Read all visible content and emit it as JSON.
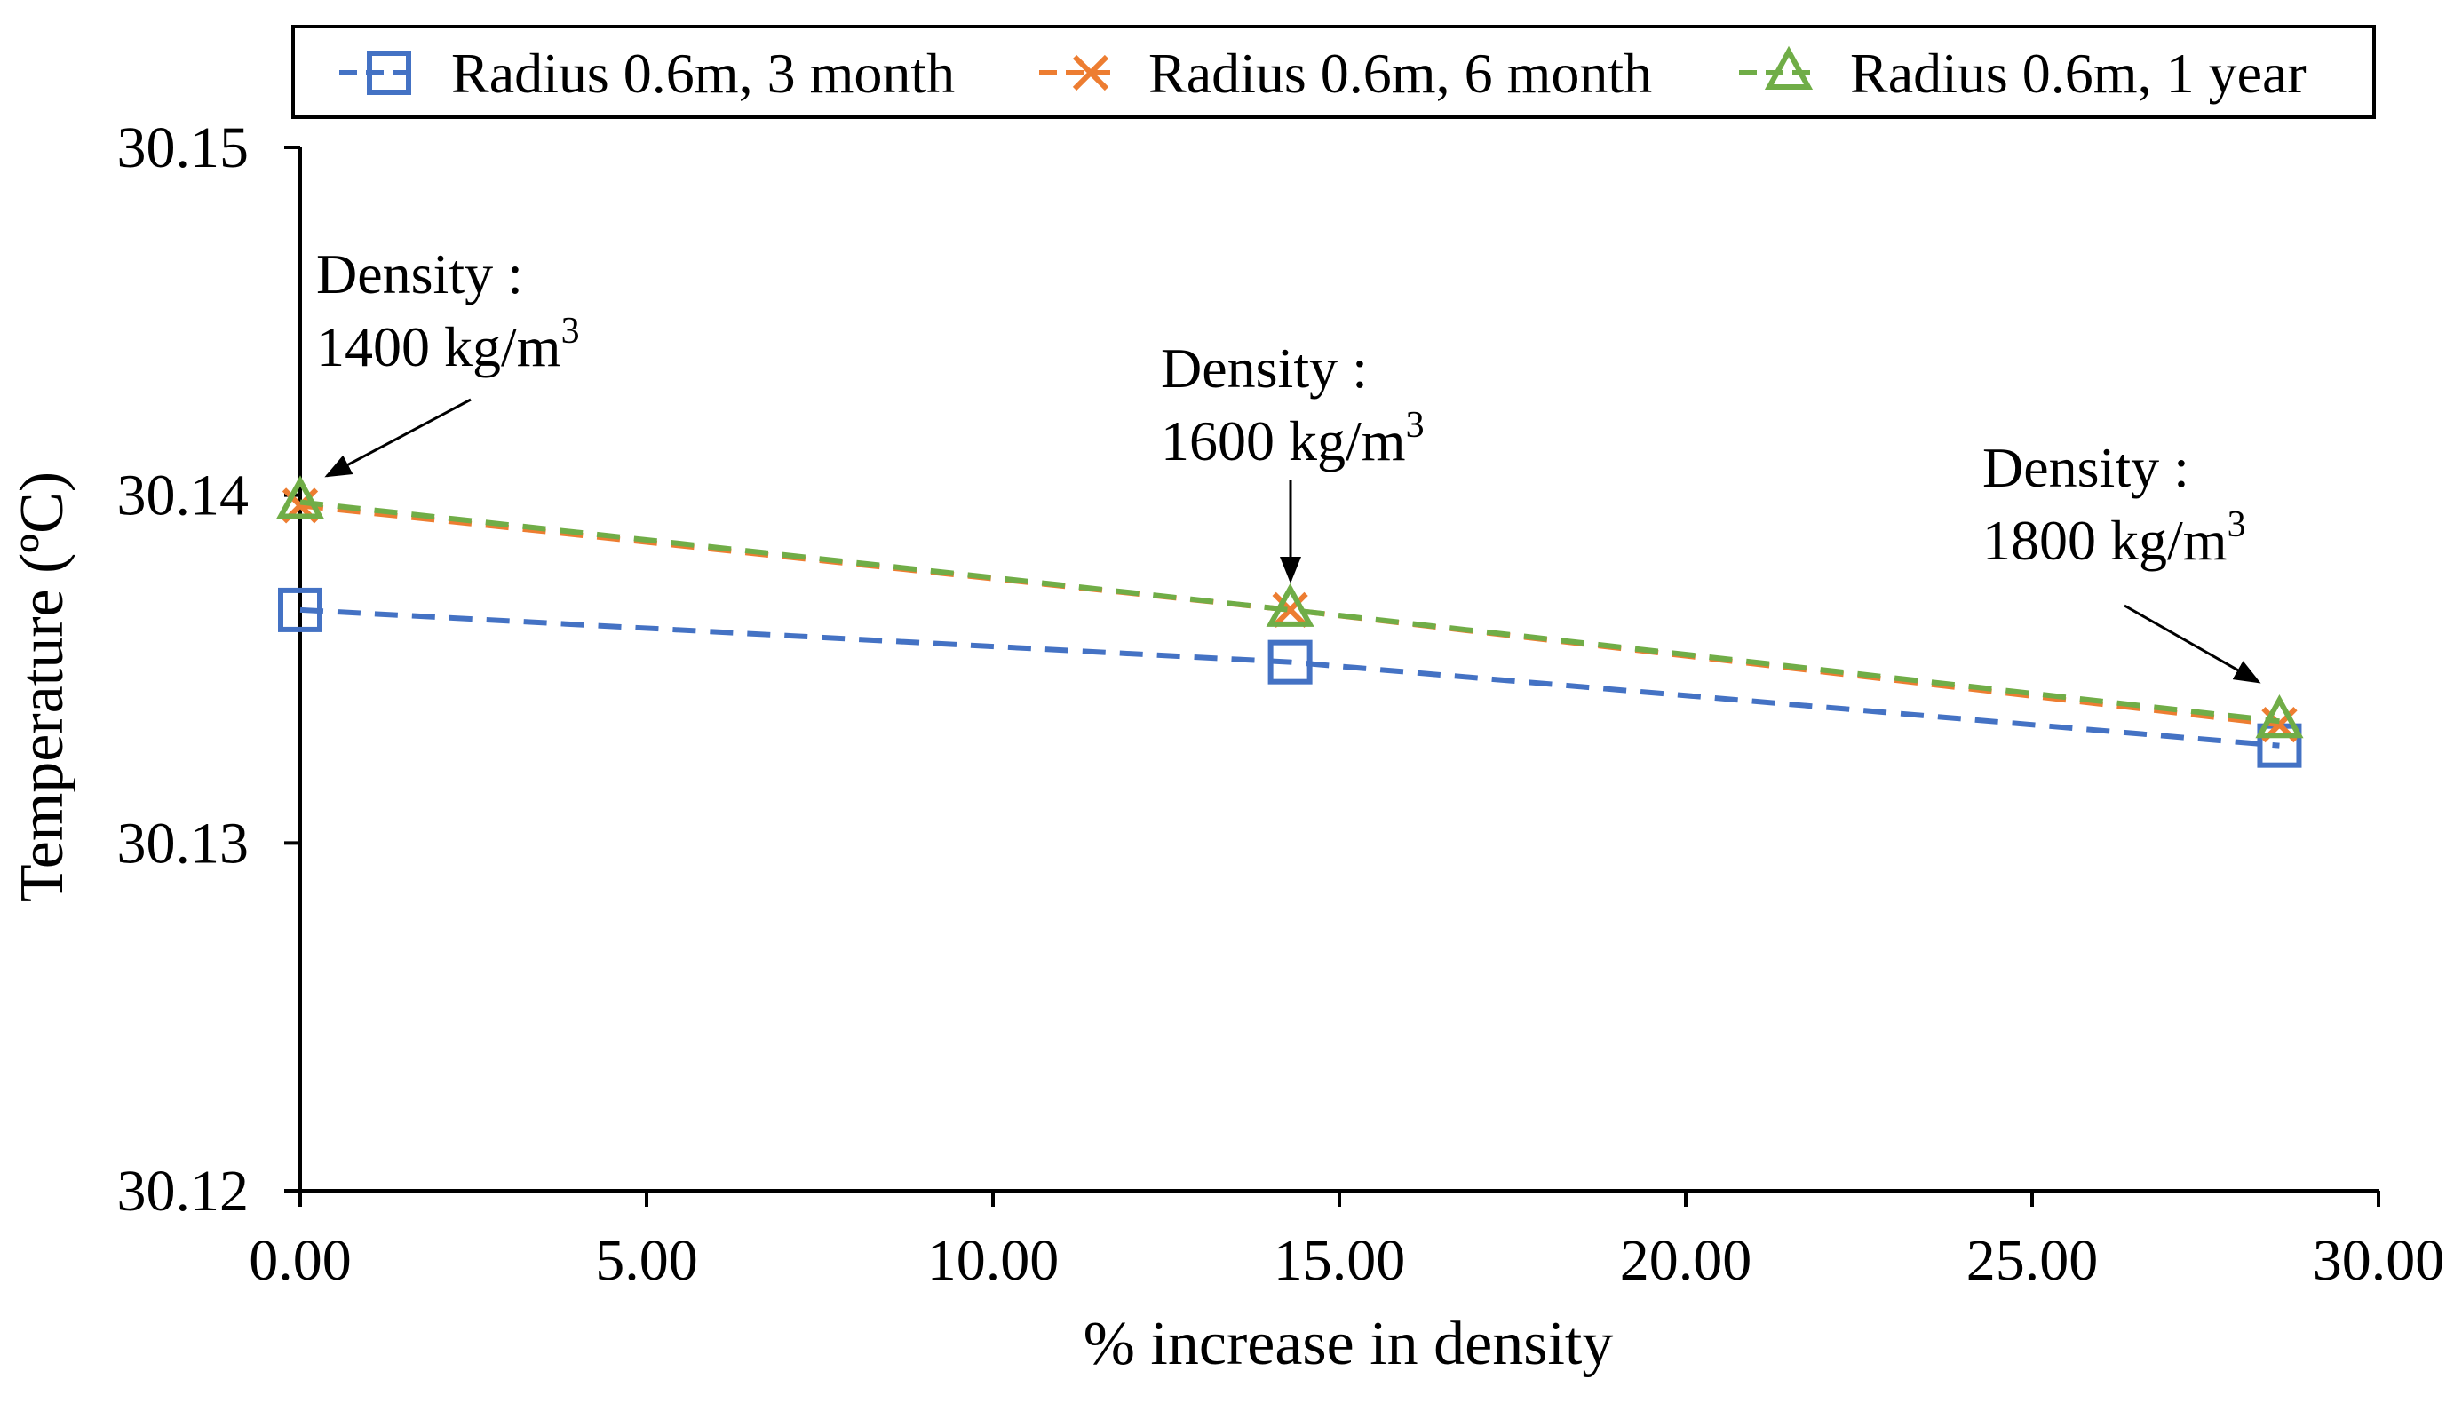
{
  "chart_data": {
    "type": "line",
    "xlabel": "% increase in density",
    "ylabel": "Temperature (ºC)",
    "xlim": [
      0,
      30
    ],
    "ylim": [
      30.12,
      30.15
    ],
    "x_ticks": [
      "0.00",
      "5.00",
      "10.00",
      "15.00",
      "20.00",
      "25.00",
      "30.00"
    ],
    "y_ticks": [
      "30.12",
      "30.13",
      "30.14",
      "30.15"
    ],
    "grid": false,
    "legend": "top",
    "x": [
      0,
      14.29,
      28.57
    ],
    "series": [
      {
        "name": "Radius 0.6m, 3 month",
        "values": [
          30.1367,
          30.1352,
          30.1328
        ],
        "color": "#4472C4",
        "marker": "square"
      },
      {
        "name": "Radius 0.6m, 6 month",
        "values": [
          30.1397,
          30.1367,
          30.1334
        ],
        "color": "#ED7D31",
        "marker": "x"
      },
      {
        "name": "Radius 0.6m, 1 year",
        "values": [
          30.1398,
          30.1367,
          30.1335
        ],
        "color": "#70AD47",
        "marker": "triangle"
      }
    ],
    "annotations": [
      {
        "label": "Density :",
        "value": "1400 kg/m",
        "sup": "3",
        "x": 0,
        "y": 30.1397
      },
      {
        "label": "Density :",
        "value": "1600 kg/m",
        "sup": "3",
        "x": 14.29,
        "y": 30.1367
      },
      {
        "label": "Density :",
        "value": "1800 kg/m",
        "sup": "3",
        "x": 28.57,
        "y": 30.1335
      }
    ]
  }
}
